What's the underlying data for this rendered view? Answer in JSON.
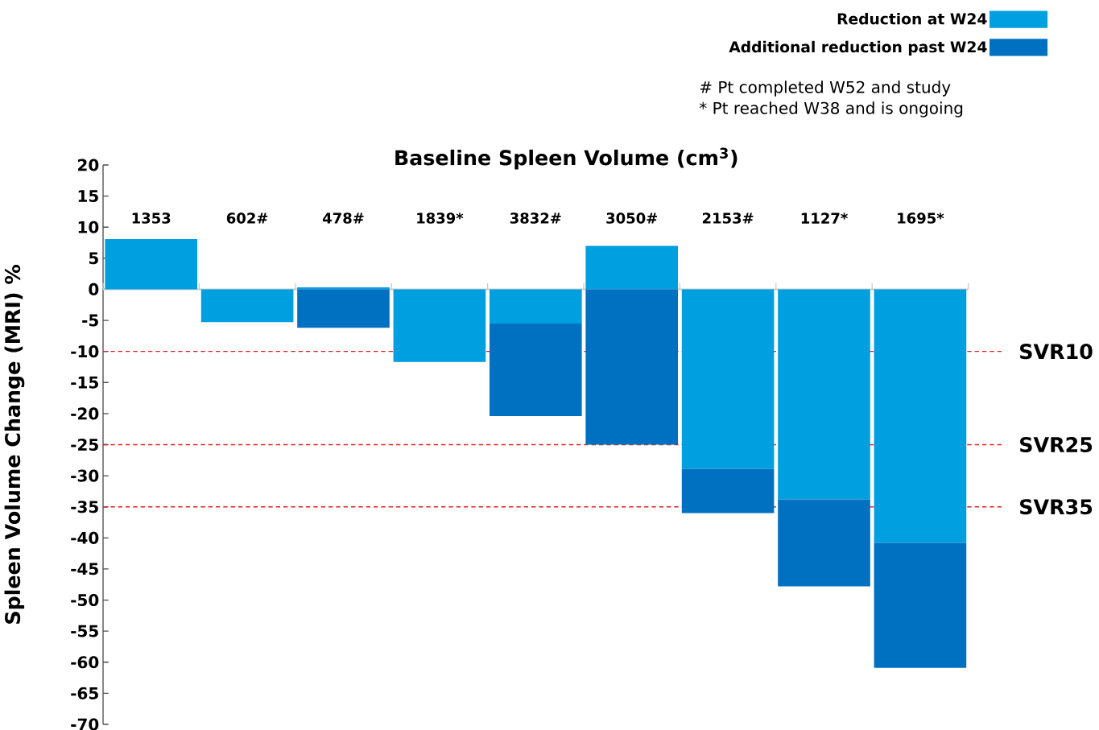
{
  "chart_data": {
    "type": "bar",
    "title": "Baseline Spleen Volume (cm$^{3}$)",
    "ylabel": "Spleen Volume Change (MRI) %",
    "categories": [
      "1353",
      "602#",
      "478#",
      "1839*",
      "3832#",
      "3050#",
      "2153#",
      "1127*",
      "1695*"
    ],
    "series": [
      {
        "name": "Reduction at W24",
        "color": "#009fdf",
        "values": [
          8.1,
          -5.3,
          0.3,
          -11.7,
          -5.5,
          7.0,
          -28.9,
          -33.8,
          -40.8
        ]
      },
      {
        "name": "Additional reduction past W24",
        "color": "#0070c0",
        "values": [
          null,
          null,
          -6.2,
          null,
          -14.9,
          -25.0,
          -7.1,
          -14.0,
          -20.1
        ]
      }
    ],
    "stacked": true,
    "ylim": [
      -70,
      20
    ],
    "yticks": [
      -70,
      -65,
      -60,
      -55,
      -50,
      -45,
      -40,
      -35,
      -30,
      -25,
      -20,
      -15,
      -10,
      -5,
      0,
      5,
      10,
      15,
      20
    ],
    "ref_lines": [
      {
        "axis": "y",
        "value": -10,
        "label": "SVR10",
        "color": "#e02020",
        "line_style": "dashed"
      },
      {
        "axis": "y",
        "value": -25,
        "label": "SVR25",
        "color": "#e02020",
        "line_style": "dashed"
      },
      {
        "axis": "y",
        "value": -35,
        "label": "SVR35",
        "color": "#e02020",
        "line_style": "dashed"
      }
    ],
    "legend": "top right",
    "annotations": [
      "# Pt completed W52 and study",
      "*  Pt reached W38 and is ongoing"
    ]
  }
}
